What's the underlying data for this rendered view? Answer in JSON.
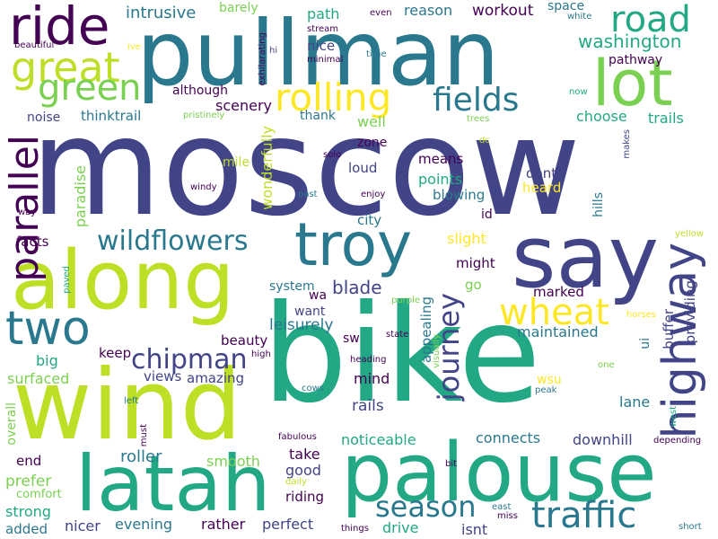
{
  "palette": {
    "background": "#ffffff",
    "dark_purple": "#440154",
    "indigo": "#414487",
    "blue": "#2a788e",
    "teal": "#22a884",
    "green": "#7ad151",
    "yellow_green": "#bddf26",
    "yellow": "#fde725"
  },
  "words": [
    "moscow",
    "bike",
    "wind",
    "pullman",
    "along",
    "palouse",
    "say",
    "latah",
    "troy",
    "lot",
    "ride",
    "parallel",
    "two",
    "highway",
    "great",
    "road",
    "green",
    "traffic",
    "season",
    "rolling",
    "fields",
    "wheat",
    "journey",
    "wildflowers",
    "chipman",
    "washington",
    "intrusive",
    "barely",
    "path",
    "reason",
    "workout",
    "space",
    "white",
    "even",
    "stream",
    "minimal",
    "nice",
    "although",
    "exhilarating",
    "beautiful",
    "ive",
    "hi",
    "time",
    "now",
    "pathway",
    "noise",
    "thinktrail",
    "scenery",
    "thank",
    "well",
    "pristinely",
    "choose",
    "trails",
    "trees",
    "dc",
    "makes",
    "solo",
    "zone",
    "means",
    "dont",
    "heard",
    "mile",
    "loud",
    "points",
    "blowing",
    "hills",
    "paradise",
    "wonderfully",
    "windy",
    "past",
    "enjoy",
    "id",
    "way",
    "city",
    "facts",
    "slight",
    "yellow",
    "might",
    "paved",
    "system",
    "blade",
    "go",
    "marked",
    "wa",
    "want",
    "appealing",
    "purple",
    "horses",
    "buffer",
    "leisurely",
    "state",
    "visually",
    "maintained",
    "providing",
    "beauty",
    "sw",
    "ui",
    "big",
    "keep",
    "views",
    "amazing",
    "high",
    "heading",
    "surfaced",
    "mind",
    "one",
    "wsu",
    "peak",
    "rails",
    "cows",
    "lane",
    "left",
    "overall",
    "west",
    "fabulous",
    "noticeable",
    "connects",
    "downhill",
    "depending",
    "must",
    "end",
    "roller",
    "smooth",
    "prefer",
    "take",
    "bit",
    "good",
    "comfort",
    "daily",
    "riding",
    "strong",
    "east",
    "added",
    "nicer",
    "evening",
    "rather",
    "perfect",
    "drive",
    "isnt",
    "things",
    "miss",
    "short"
  ]
}
